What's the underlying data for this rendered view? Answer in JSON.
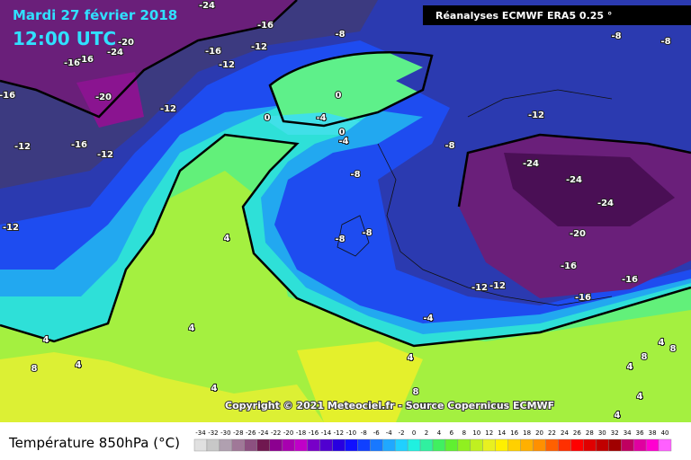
{
  "header": {
    "date": "Mardi 27 février 2018",
    "time": "12:00 UTC",
    "source": "Réanalyses ECMWF ERA5 0.25 °"
  },
  "map": {
    "copyright": "Copyright © 2021 Meteociel.fr - Source Copernicus ECMWF",
    "contour_labels": [
      "-24",
      "-16",
      "-8",
      "-8",
      "-8",
      "-20",
      "-12",
      "-24",
      "-16",
      "-16",
      "-16",
      "-12",
      "-16",
      "-20",
      "-12",
      "0",
      "-12",
      "0",
      "-4",
      "0",
      "-4",
      "-12",
      "-16",
      "-12",
      "-8",
      "-24",
      "-8",
      "-24",
      "-24",
      "-12",
      "4",
      "-8",
      "-8",
      "-20",
      "-16",
      "-16",
      "-12",
      "-12",
      "-16",
      "-4",
      "4",
      "4",
      "4",
      "8",
      "4",
      "4",
      "8",
      "4",
      "8",
      "8",
      "4",
      "4",
      "4"
    ]
  },
  "legend": {
    "title": "Température 850hPa (°C)",
    "ticks": [
      -34,
      -32,
      -30,
      -28,
      -26,
      -24,
      -22,
      -20,
      -18,
      -16,
      -14,
      -12,
      -10,
      -8,
      -6,
      -4,
      -2,
      0,
      2,
      4,
      6,
      8,
      10,
      12,
      14,
      16,
      18,
      20,
      22,
      24,
      26,
      28,
      30,
      32,
      34,
      36,
      38,
      40
    ]
  }
}
